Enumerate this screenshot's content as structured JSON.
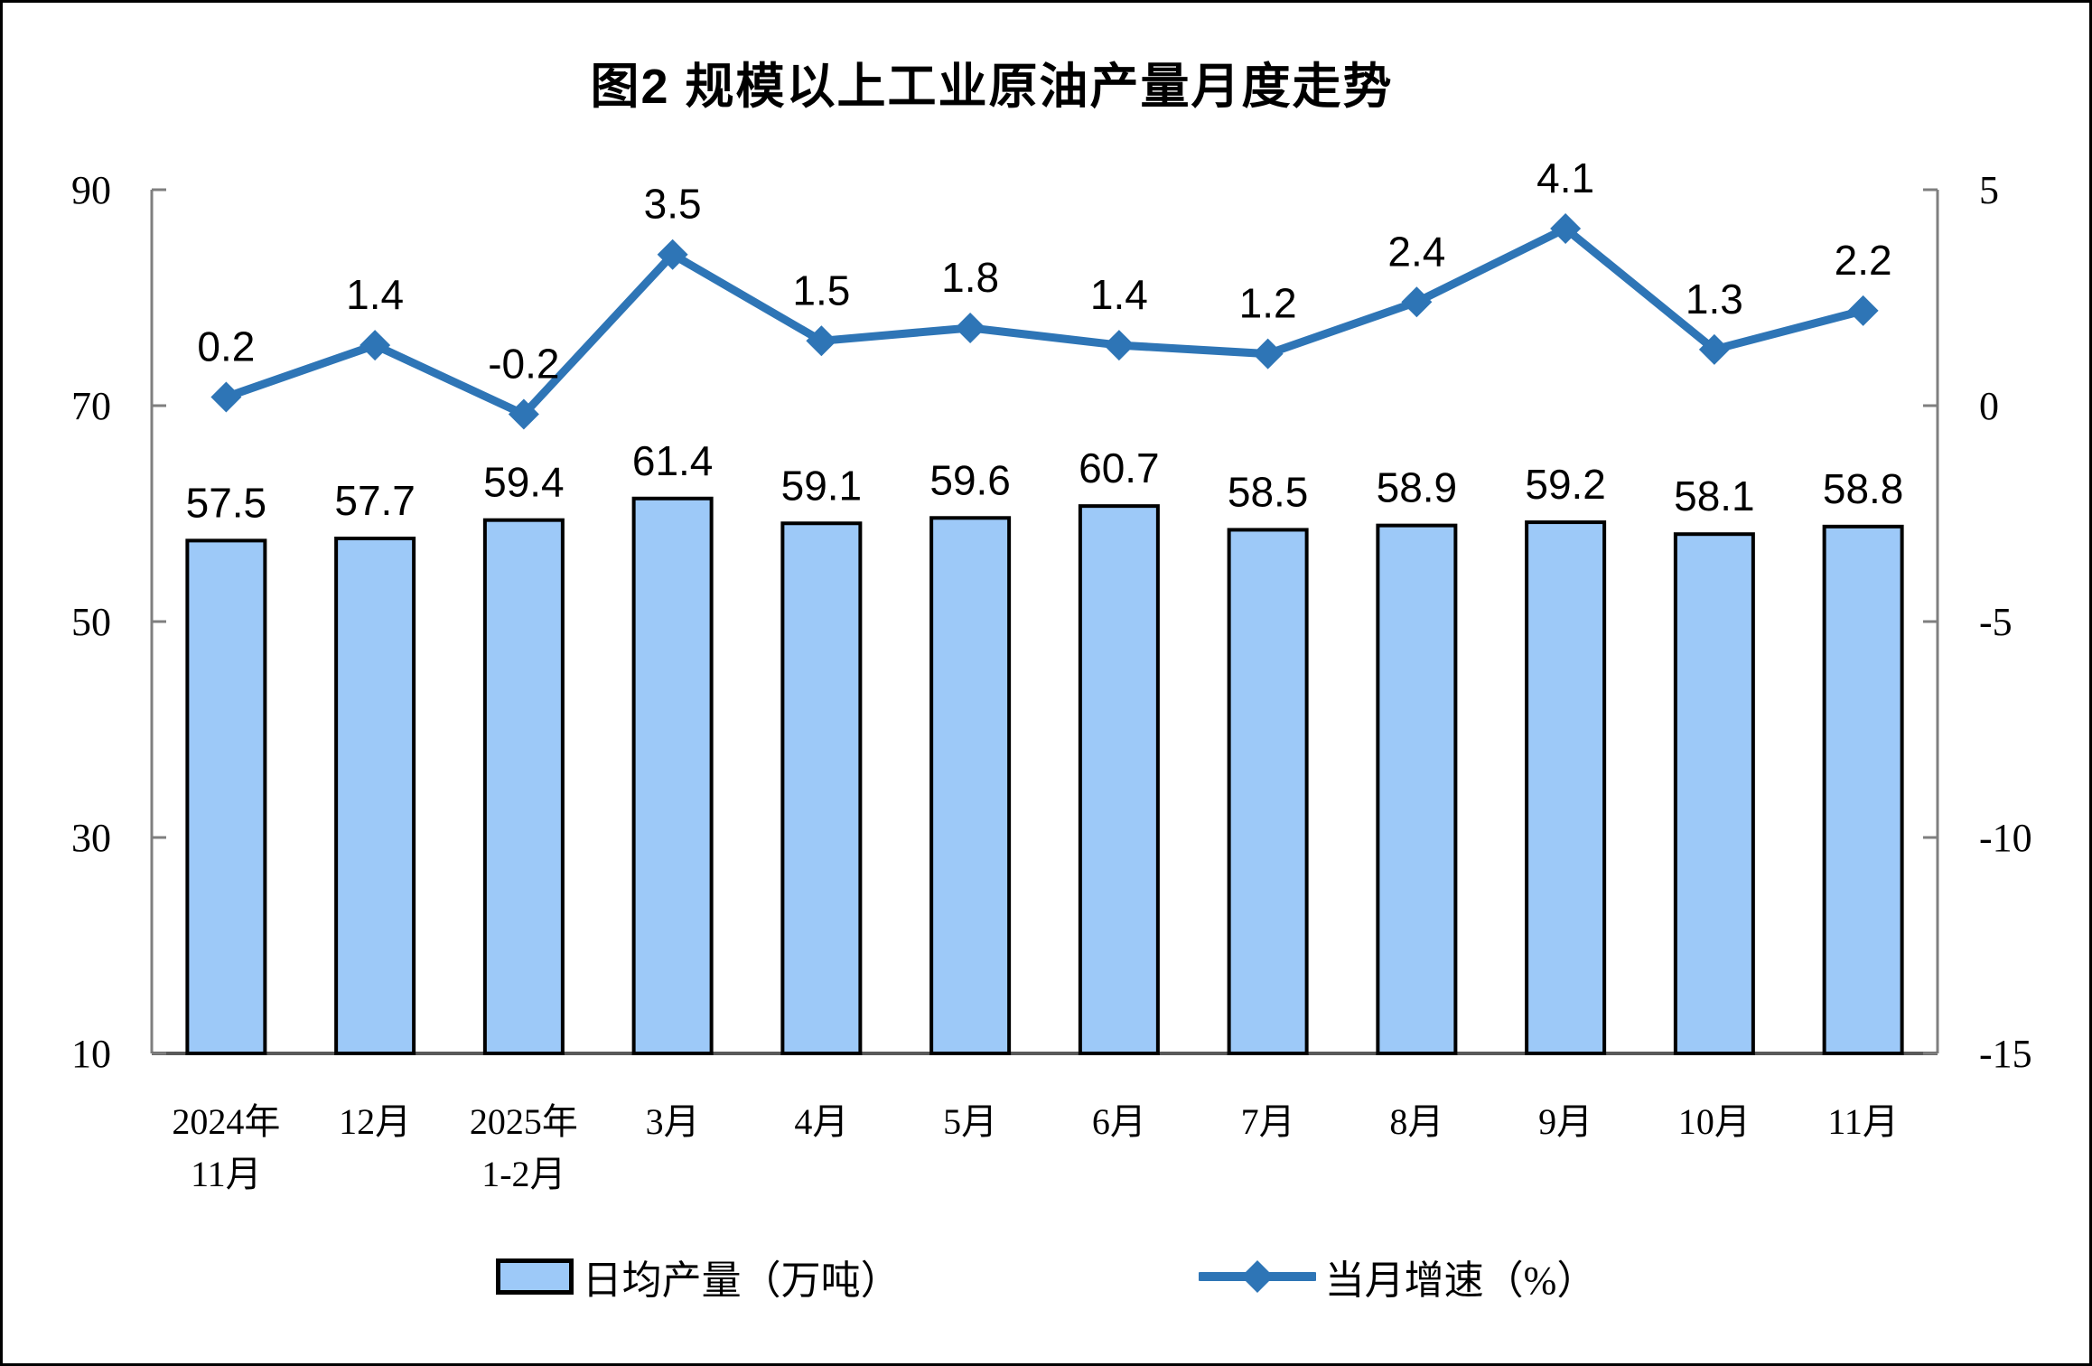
{
  "title": "图2 规模以上工业原油产量月度走势",
  "colors": {
    "bar_fill": "#9DC9F8",
    "bar_border": "#000000",
    "line": "#2E75B6",
    "axis": "#7f7f7f",
    "baseline": "#595959",
    "text": "#000000"
  },
  "legend": [
    {
      "label": "日均产量（万吨）",
      "type": "bar"
    },
    {
      "label": "当月增速（%）",
      "type": "line"
    }
  ],
  "chart_data": {
    "type": "bar+line combo",
    "title": "图2 规模以上工业原油产量月度走势",
    "categories": [
      "2024年\n11月",
      "12月",
      "2025年\n1-2月",
      "3月",
      "4月",
      "5月",
      "6月",
      "7月",
      "8月",
      "9月",
      "10月",
      "11月"
    ],
    "series": [
      {
        "name": "日均产量（万吨）",
        "type": "bar",
        "axis": "left",
        "values": [
          57.5,
          57.7,
          59.4,
          61.4,
          59.1,
          59.6,
          60.7,
          58.5,
          58.9,
          59.2,
          58.1,
          58.8
        ]
      },
      {
        "name": "当月增速（%）",
        "type": "line",
        "axis": "right",
        "values": [
          0.2,
          1.4,
          -0.2,
          3.5,
          1.5,
          1.8,
          1.4,
          1.2,
          2.4,
          4.1,
          1.3,
          2.2
        ]
      }
    ],
    "left_axis": {
      "min": 10,
      "max": 90,
      "ticks": [
        10,
        30,
        50,
        70,
        90
      ]
    },
    "right_axis": {
      "min": -15,
      "max": 5,
      "ticks": [
        -15,
        -10,
        -5,
        0,
        5
      ]
    },
    "grid": false,
    "data_labels": true,
    "legend_position": "bottom"
  }
}
